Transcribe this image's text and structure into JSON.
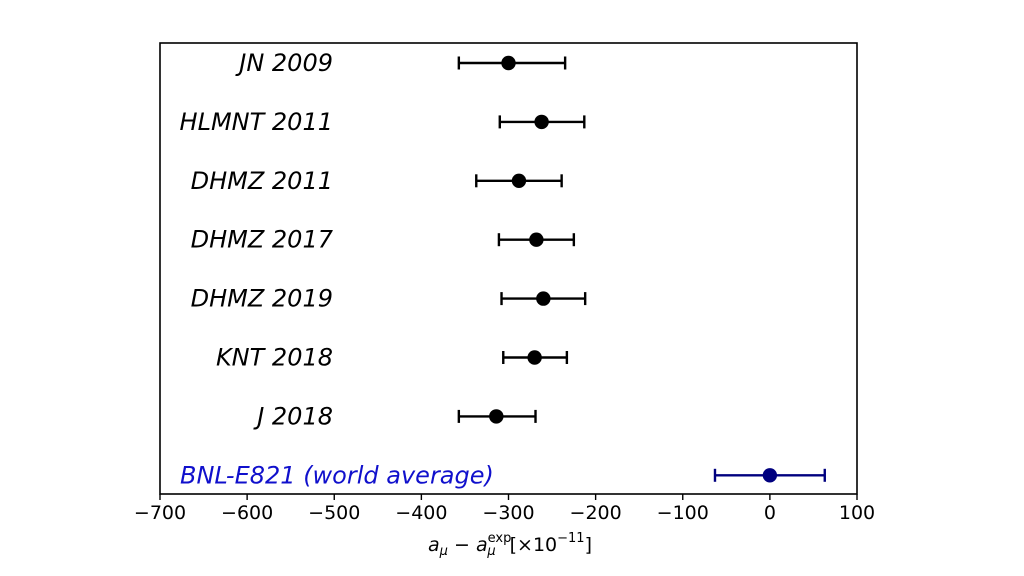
{
  "chart_data": {
    "type": "scatter",
    "xlabel": {
      "base": "a",
      "base_sub": "μ",
      "minus": " − ",
      "exp_base": "a",
      "exp_sub": "μ",
      "exp_sup": "exp",
      "units": "[×10",
      "units_sup": "−11",
      "units_close": "]"
    },
    "xlim": [
      -700,
      100
    ],
    "xticks": [
      -700,
      -600,
      -500,
      -400,
      -300,
      -200,
      -100,
      0,
      100
    ],
    "xtick_labels": [
      "−700",
      "−600",
      "−500",
      "−400",
      "−300",
      "−200",
      "−100",
      "0",
      "100"
    ],
    "series": [
      {
        "name": "JN 2009",
        "value": -300,
        "err_low": 57,
        "err_high": 65,
        "color": "#000000"
      },
      {
        "name": "HLMNT 2011",
        "value": -262,
        "err_low": 48,
        "err_high": 49,
        "color": "#000000"
      },
      {
        "name": "DHMZ 2011",
        "value": -288,
        "err_low": 49,
        "err_high": 49,
        "color": "#000000"
      },
      {
        "name": "DHMZ 2017",
        "value": -268,
        "err_low": 43,
        "err_high": 43,
        "color": "#000000"
      },
      {
        "name": "DHMZ 2019",
        "value": -260,
        "err_low": 48,
        "err_high": 48,
        "color": "#000000"
      },
      {
        "name": "KNT 2018",
        "value": -270,
        "err_low": 36,
        "err_high": 37,
        "color": "#000000"
      },
      {
        "name": "J 2018",
        "value": -314,
        "err_low": 43,
        "err_high": 45,
        "color": "#000000"
      },
      {
        "name": "BNL-E821 (world average)",
        "value": 0,
        "err_low": 63,
        "err_high": 63,
        "color": "#00007f",
        "label_color": "#1010cc"
      }
    ],
    "grid": false
  }
}
